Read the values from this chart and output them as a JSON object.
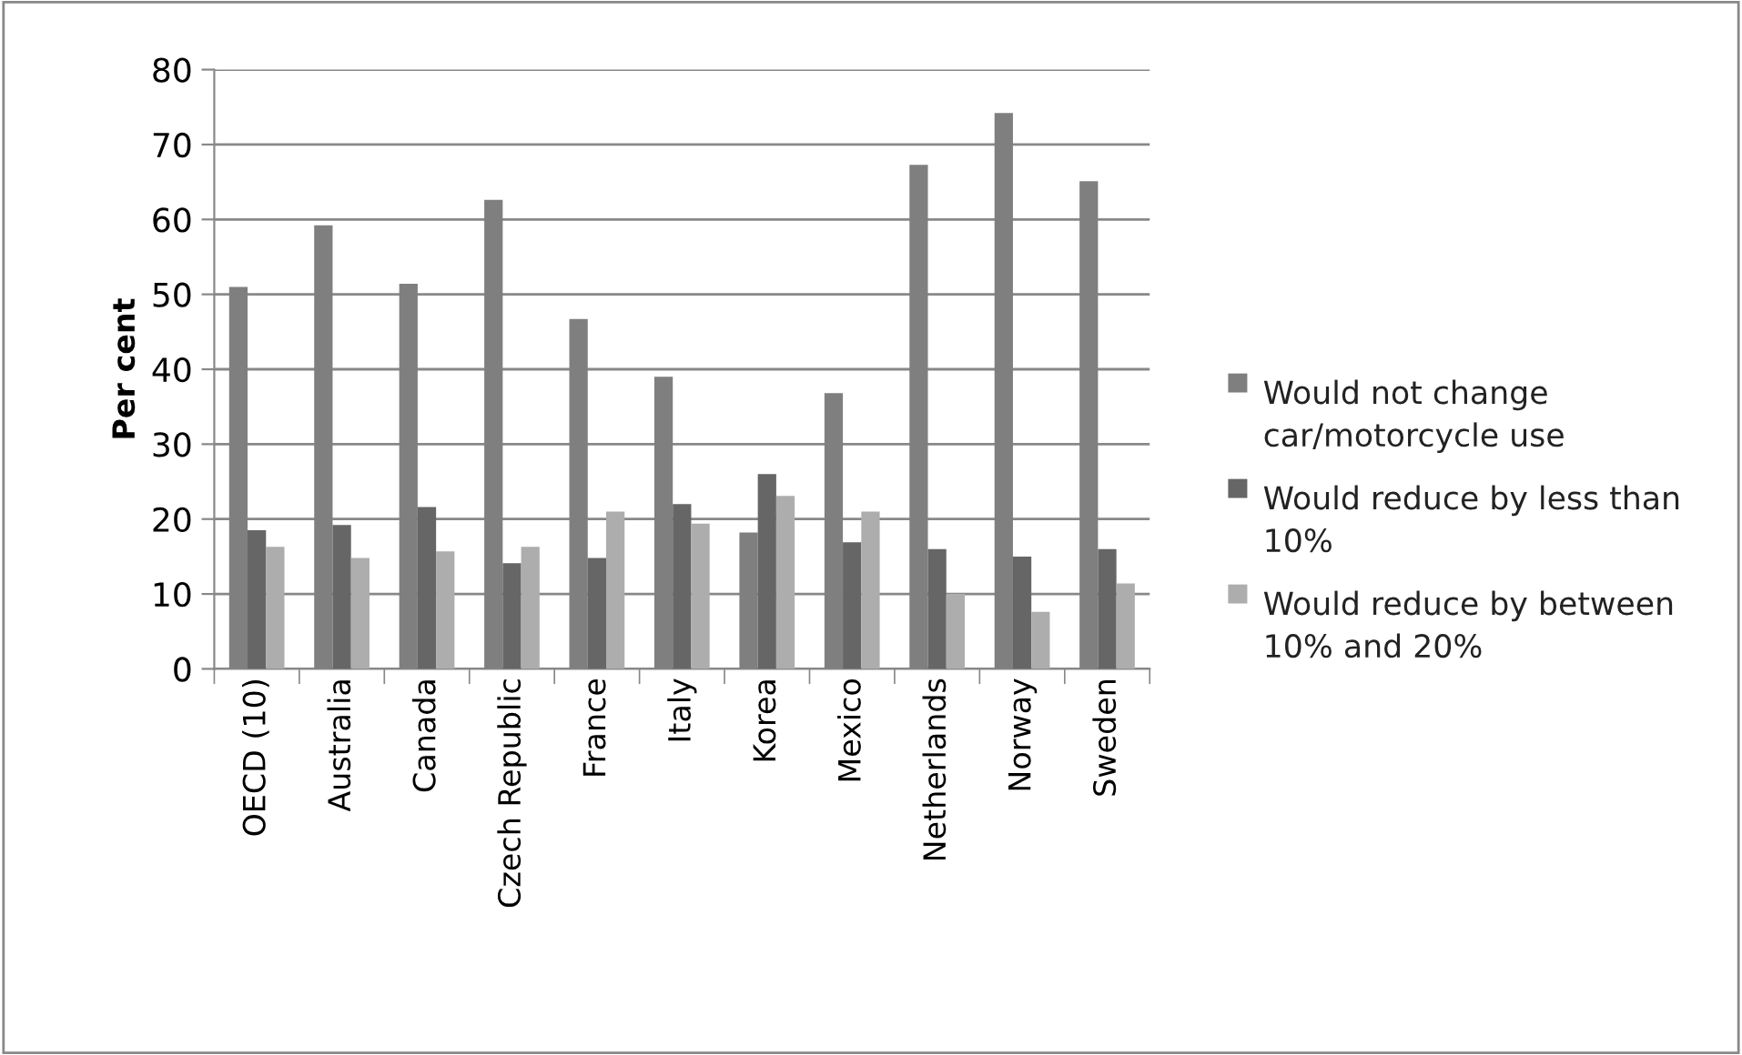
{
  "chart_data": {
    "type": "bar",
    "ylabel": "Per cent",
    "categories": [
      "OECD (10)",
      "Australia",
      "Canada",
      "Czech Republic",
      "France",
      "Italy",
      "Korea",
      "Mexico",
      "Netherlands",
      "Norway",
      "Sweden"
    ],
    "series": [
      {
        "name": "Would not change car/motorcycle use",
        "color": "#7f7f7f",
        "values": [
          51,
          59.2,
          51.4,
          62.6,
          46.7,
          39,
          18.2,
          36.8,
          67.3,
          74.2,
          65.1
        ]
      },
      {
        "name": "Would reduce by less than 10%",
        "color": "#666666",
        "values": [
          18.5,
          19.2,
          21.6,
          14.1,
          14.8,
          22,
          26,
          16.9,
          16,
          15,
          16
        ]
      },
      {
        "name": "Would reduce by between 10% and 20%",
        "color": "#adadad",
        "values": [
          16.3,
          14.8,
          15.7,
          16.3,
          21,
          19.4,
          23.1,
          21,
          10,
          7.6,
          11.4
        ]
      }
    ],
    "ylim": [
      0,
      80
    ],
    "yticks": [
      0,
      10,
      20,
      30,
      40,
      50,
      60,
      70,
      80
    ],
    "grid": "y",
    "legend": "right"
  }
}
